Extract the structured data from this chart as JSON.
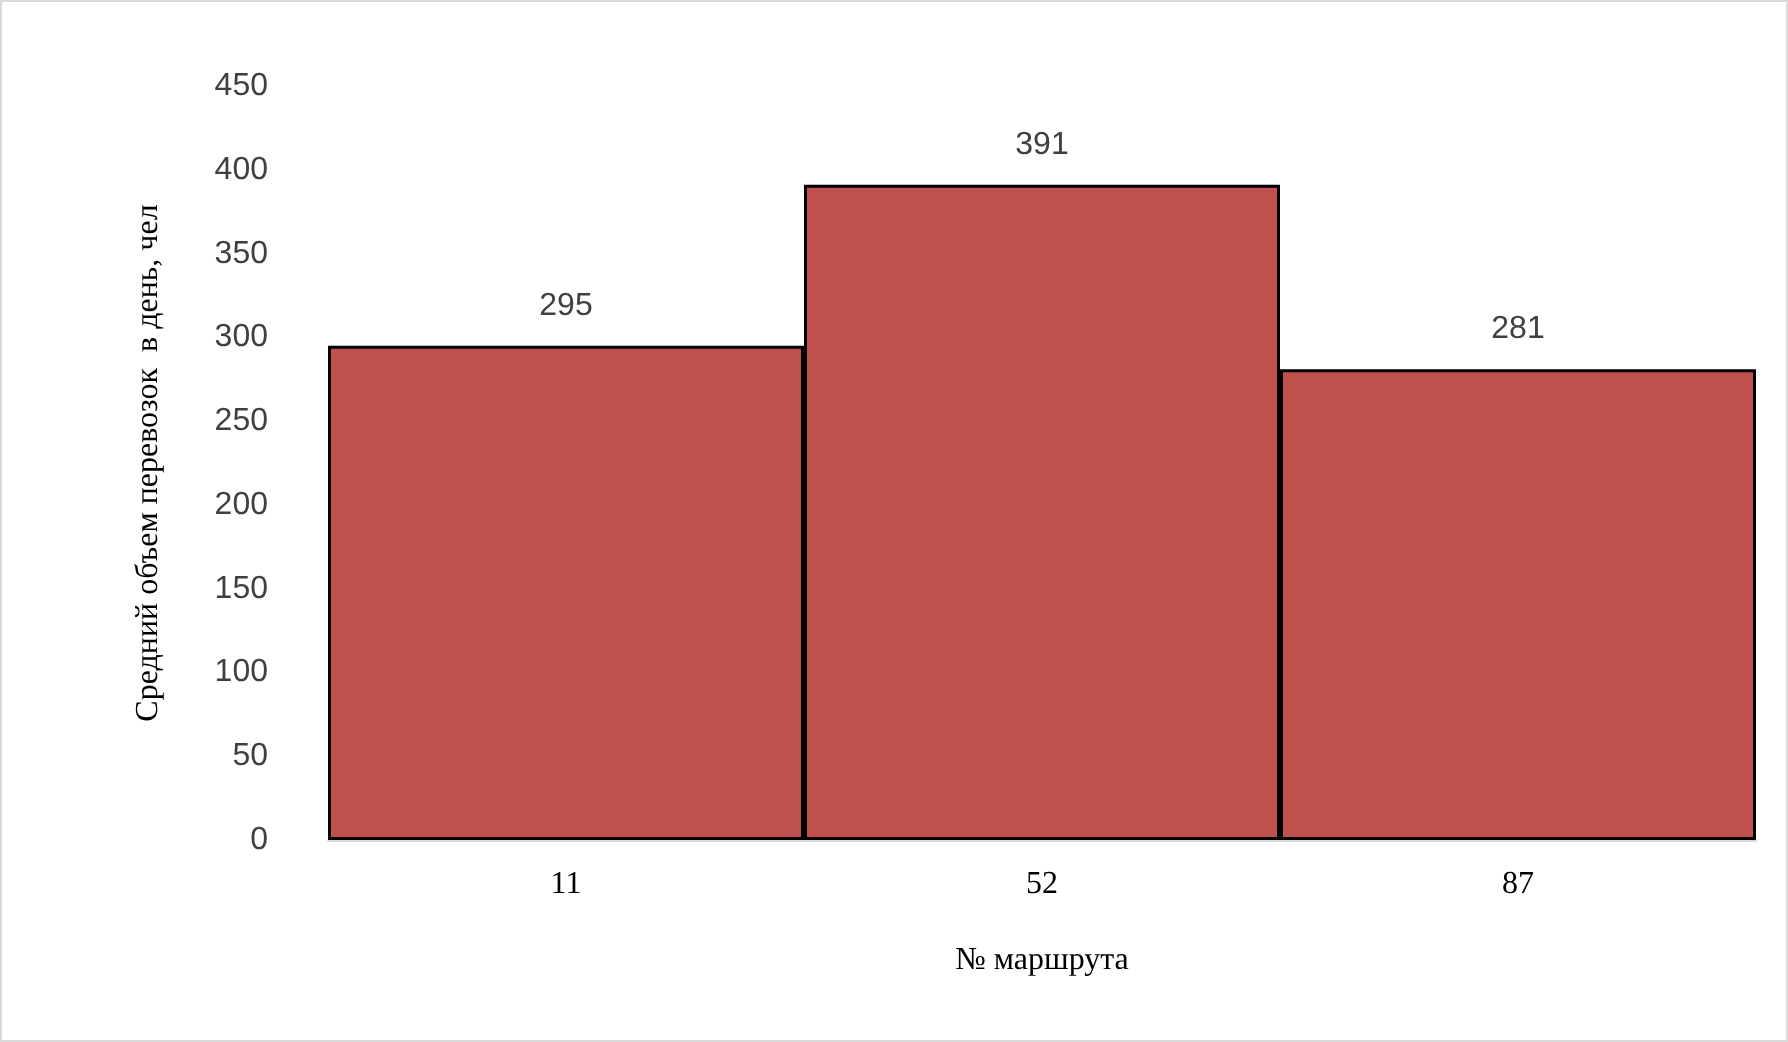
{
  "chart_data": {
    "type": "bar",
    "xlabel": "№ маршрута",
    "ylabel": "Средний объем перевозок  в день, чел",
    "categories": [
      "11",
      "52",
      "87"
    ],
    "values": [
      295,
      391,
      281
    ],
    "color": "#c0504d",
    "ylim": [
      0,
      450
    ],
    "yticks": [
      0,
      50,
      100,
      150,
      200,
      250,
      300,
      350,
      400,
      450
    ],
    "grid": false,
    "data_labels": true
  }
}
